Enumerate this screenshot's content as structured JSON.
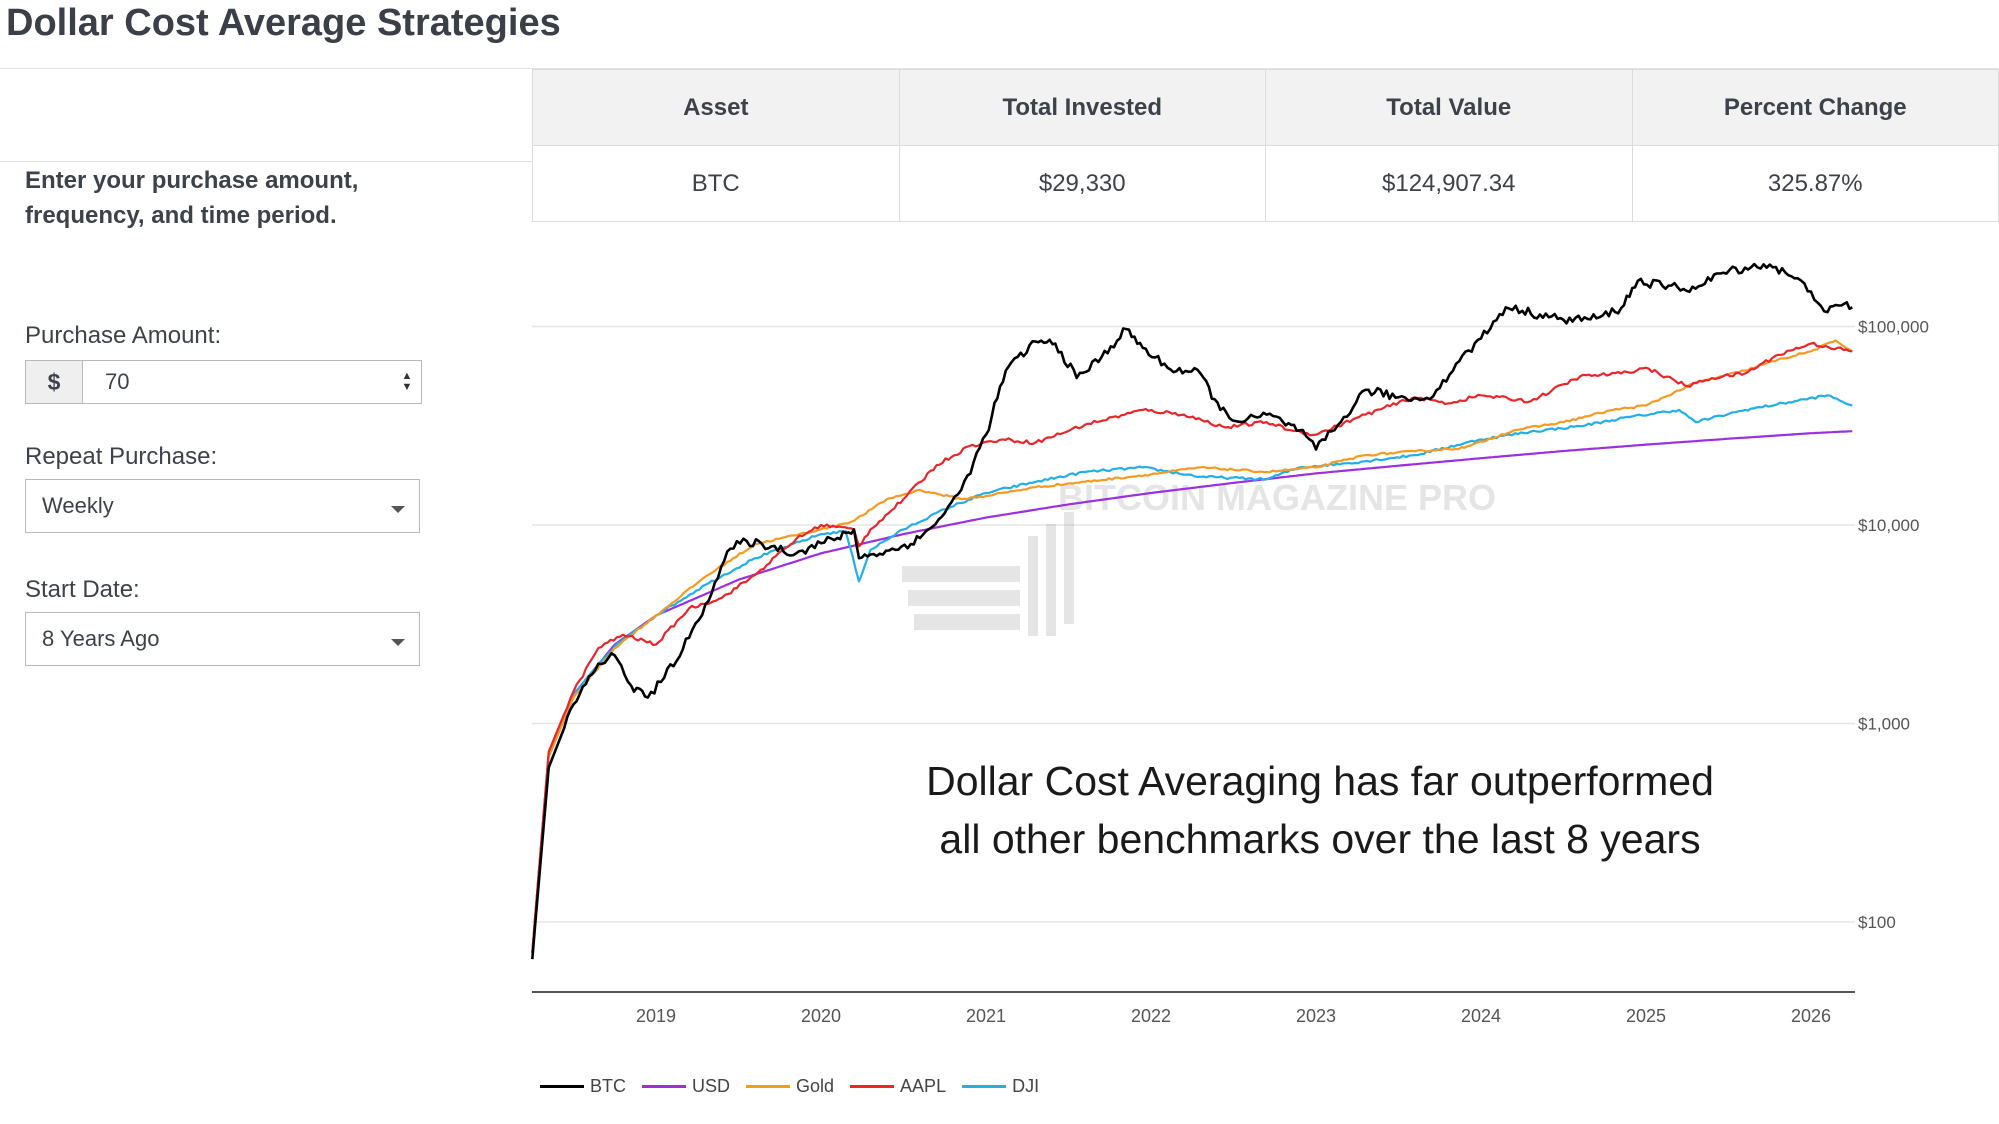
{
  "page": {
    "title": "Dollar Cost Average Strategies"
  },
  "form": {
    "intro": "Enter your purchase amount, frequency, and time period.",
    "amount_label": "Purchase Amount:",
    "currency_symbol": "$",
    "amount_value": "70",
    "repeat_label": "Repeat Purchase:",
    "repeat_value": "Weekly",
    "start_label": "Start Date:",
    "start_value": "8 Years Ago"
  },
  "table": {
    "headers": [
      "Asset",
      "Total Invested",
      "Total Value",
      "Percent Change"
    ],
    "rows": [
      [
        "BTC",
        "$29,330",
        "$124,907.34",
        "325.87%"
      ]
    ]
  },
  "icons": {
    "spinner_up": "chevron-up-icon",
    "spinner_down": "chevron-down-icon",
    "dropdown": "caret-down-icon"
  },
  "colors": {
    "BTC": "#000000",
    "USD": "#9b30e0",
    "Gold": "#f59a23",
    "AAPL": "#e8262b",
    "DJI": "#22aee8"
  },
  "watermark": "BITCOIN MAGAZINE PRO",
  "chart_data": {
    "type": "line",
    "title": "",
    "xlabel": "",
    "ylabel": "",
    "y_scale": "log",
    "ylim": [
      50,
      150000
    ],
    "xlim": [
      2018.25,
      2026.28
    ],
    "x_ticks": [
      2019,
      2020,
      2021,
      2022,
      2023,
      2024,
      2025,
      2026
    ],
    "x_tick_labels": [
      "2019",
      "2020",
      "2021",
      "2022",
      "2023",
      "2024",
      "2025",
      "2026"
    ],
    "y_ticks": [
      100,
      1000,
      10000,
      100000
    ],
    "y_tick_labels": [
      "$100",
      "$1,000",
      "$10,000",
      "$100,000"
    ],
    "legend_position": "bottom-left",
    "annotation": [
      "Dollar Cost Averaging has far outperformed",
      "all other benchmarks over the last 8 years"
    ],
    "series": [
      {
        "name": "BTC",
        "x": [
          2018.25,
          2018.35,
          2018.5,
          2018.65,
          2018.75,
          2018.85,
          2018.95,
          2019.05,
          2019.2,
          2019.3,
          2019.45,
          2019.55,
          2019.7,
          2019.85,
          2020.0,
          2020.1,
          2020.2,
          2020.23,
          2020.3,
          2020.45,
          2020.6,
          2020.75,
          2020.85,
          2021.0,
          2021.12,
          2021.3,
          2021.42,
          2021.55,
          2021.7,
          2021.85,
          2021.95,
          2022.1,
          2022.3,
          2022.42,
          2022.55,
          2022.7,
          2022.8,
          2022.9,
          2023.0,
          2023.15,
          2023.3,
          2023.5,
          2023.65,
          2023.75,
          2023.85,
          2024.0,
          2024.15,
          2024.25,
          2024.5,
          2024.7,
          2024.85,
          2024.95,
          2025.1,
          2025.3,
          2025.45,
          2025.6,
          2025.75,
          2025.9,
          2026.0,
          2026.1,
          2026.2,
          2026.25
        ],
        "values": [
          65,
          600,
          1250,
          2000,
          2200,
          1550,
          1350,
          1700,
          2700,
          4000,
          7600,
          8300,
          7800,
          7200,
          8100,
          8600,
          9500,
          6800,
          7100,
          7500,
          8600,
          11500,
          15000,
          28500,
          60000,
          84000,
          82000,
          55000,
          70000,
          97000,
          78000,
          62000,
          58000,
          38000,
          33000,
          36000,
          33000,
          30000,
          24000,
          33000,
          48000,
          44000,
          43000,
          49000,
          65000,
          87000,
          125000,
          120000,
          108000,
          110000,
          124000,
          170000,
          160000,
          155000,
          185000,
          198000,
          205000,
          175000,
          150000,
          118000,
          130000,
          125000
        ]
      },
      {
        "name": "USD",
        "x": [
          2018.25,
          2018.35,
          2018.5,
          2018.75,
          2019.0,
          2019.5,
          2020.0,
          2020.5,
          2021.0,
          2021.5,
          2022.0,
          2022.5,
          2023.0,
          2023.5,
          2024.0,
          2024.5,
          2025.0,
          2025.5,
          2026.0,
          2026.25
        ],
        "values": [
          70,
          700,
          1400,
          2500,
          3500,
          5300,
          7200,
          9000,
          10900,
          12700,
          14500,
          16300,
          18200,
          19900,
          21700,
          23600,
          25400,
          27200,
          29000,
          29700
        ]
      },
      {
        "name": "Gold",
        "x": [
          2018.25,
          2018.35,
          2018.5,
          2018.75,
          2019.0,
          2019.3,
          2019.6,
          2020.0,
          2020.2,
          2020.4,
          2020.6,
          2020.85,
          2021.0,
          2021.3,
          2021.6,
          2022.0,
          2022.3,
          2022.7,
          2023.0,
          2023.3,
          2023.6,
          2023.9,
          2024.2,
          2024.5,
          2024.8,
          2025.0,
          2025.3,
          2025.6,
          2025.8,
          2026.0,
          2026.15,
          2026.25
        ],
        "values": [
          70,
          680,
          1350,
          2400,
          3500,
          5500,
          8000,
          9500,
          10500,
          13500,
          15000,
          13500,
          14000,
          15500,
          16500,
          18000,
          19500,
          18500,
          19500,
          22500,
          23500,
          24500,
          30000,
          33000,
          38000,
          40000,
          52000,
          60000,
          68000,
          75000,
          85000,
          75000
        ]
      },
      {
        "name": "AAPL",
        "x": [
          2018.25,
          2018.35,
          2018.5,
          2018.65,
          2018.8,
          2019.0,
          2019.2,
          2019.4,
          2019.6,
          2019.85,
          2020.0,
          2020.2,
          2020.23,
          2020.3,
          2020.5,
          2020.7,
          2020.9,
          2021.1,
          2021.3,
          2021.6,
          2021.95,
          2022.2,
          2022.45,
          2022.7,
          2022.85,
          2023.0,
          2023.3,
          2023.6,
          2023.8,
          2024.0,
          2024.3,
          2024.6,
          2024.85,
          2025.0,
          2025.25,
          2025.4,
          2025.6,
          2025.8,
          2026.0,
          2026.25
        ],
        "values": [
          70,
          720,
          1450,
          2400,
          2800,
          2500,
          3800,
          4300,
          5600,
          8500,
          10000,
          9500,
          7800,
          9500,
          13500,
          20000,
          25000,
          27000,
          26000,
          32000,
          38000,
          36000,
          31000,
          33000,
          30000,
          28500,
          36000,
          44000,
          41000,
          45000,
          42000,
          56000,
          58000,
          62000,
          50000,
          55000,
          58000,
          72000,
          82000,
          75000
        ]
      },
      {
        "name": "DJI",
        "x": [
          2018.25,
          2018.35,
          2018.5,
          2018.75,
          2019.0,
          2019.3,
          2019.6,
          2020.0,
          2020.15,
          2020.23,
          2020.3,
          2020.5,
          2020.75,
          2021.0,
          2021.3,
          2021.6,
          2021.95,
          2022.3,
          2022.7,
          2022.9,
          2023.2,
          2023.6,
          2024.0,
          2024.3,
          2024.6,
          2024.9,
          2025.2,
          2025.3,
          2025.6,
          2025.9,
          2026.1,
          2026.25
        ],
        "values": [
          70,
          700,
          1400,
          2450,
          3500,
          5000,
          6800,
          9000,
          9300,
          5200,
          7500,
          9500,
          12000,
          14500,
          16500,
          18500,
          19500,
          17500,
          17000,
          19500,
          20500,
          22500,
          27000,
          29500,
          31500,
          35000,
          38000,
          33000,
          38000,
          42000,
          45000,
          40000
        ]
      }
    ]
  }
}
